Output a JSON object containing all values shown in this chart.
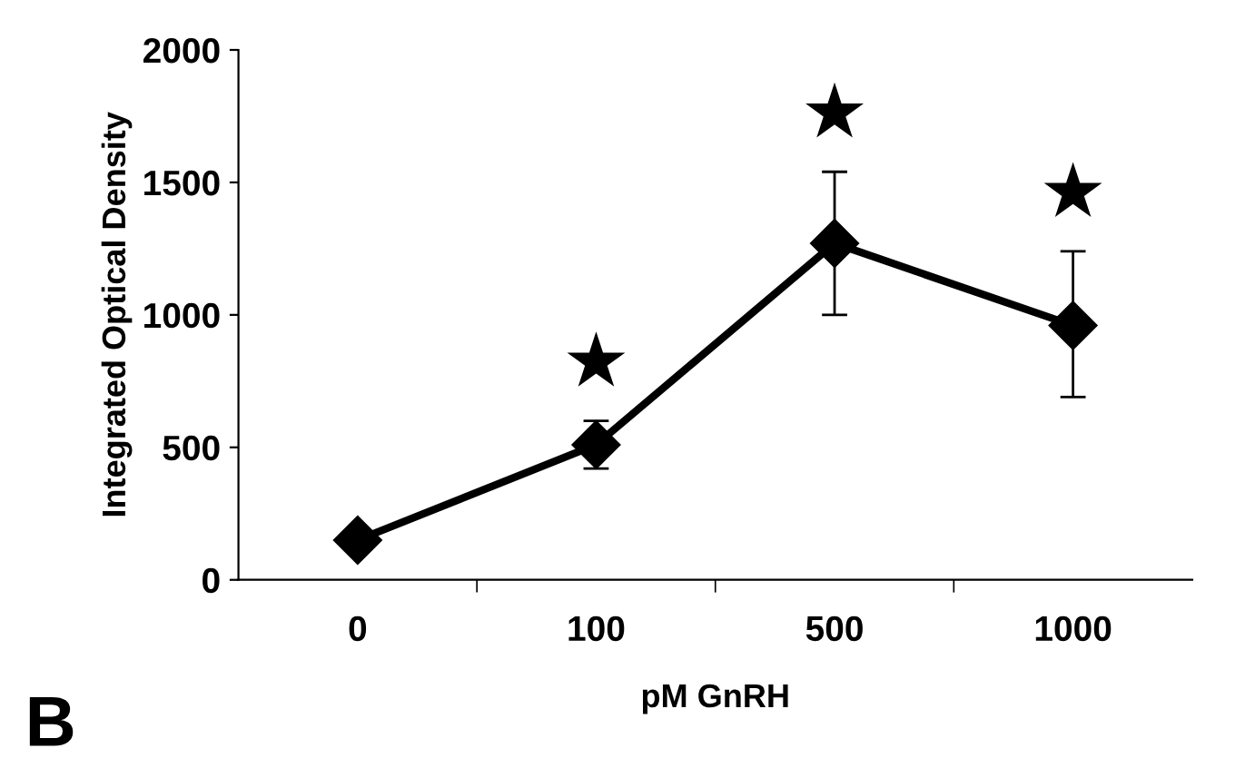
{
  "chart_data": {
    "type": "line",
    "xlabel": "pM GnRH",
    "ylabel": "Integrated Optical Density",
    "categories": [
      "0",
      "100",
      "500",
      "1000"
    ],
    "series": [
      {
        "color": "#000000",
        "values": [
          150,
          510,
          1270,
          960
        ],
        "errors": [
          null,
          [
            420,
            600
          ],
          [
            1000,
            1540
          ],
          [
            690,
            1240
          ]
        ]
      }
    ],
    "ylim": [
      0,
      2000
    ],
    "yticks": [
      0,
      500,
      1000,
      1500,
      2000
    ],
    "marker": "diamond",
    "line_style": "solid",
    "grid": false,
    "legend": false,
    "annotations": [
      "★",
      "★",
      "★",
      "B"
    ]
  }
}
